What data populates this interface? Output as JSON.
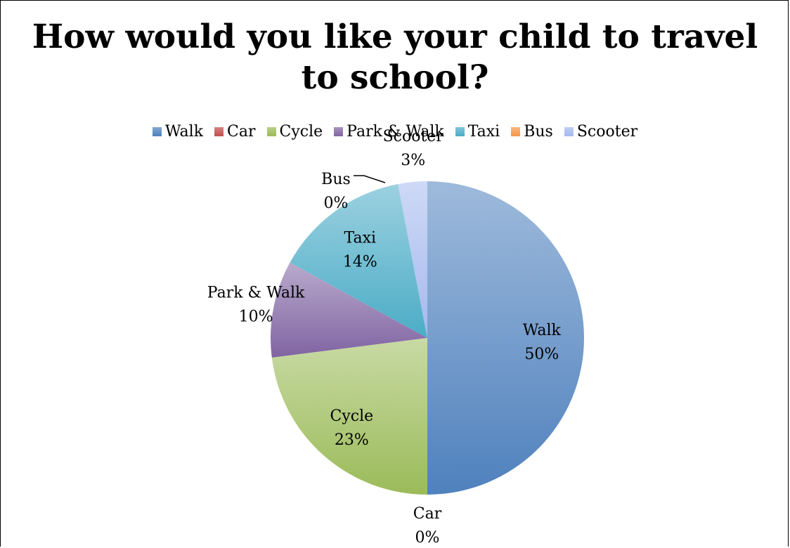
{
  "chart_data": {
    "type": "pie",
    "title": "How would you like your child to travel\nto school?",
    "legend_position": "top",
    "categories": [
      "Walk",
      "Car",
      "Cycle",
      "Park & Walk",
      "Taxi",
      "Bus",
      "Scooter"
    ],
    "values": [
      50,
      0,
      23,
      10,
      14,
      0,
      3
    ],
    "value_labels": [
      "50%",
      "0%",
      "23%",
      "10%",
      "14%",
      "0%",
      "3%"
    ],
    "colors": [
      "#4F81BD",
      "#C0504D",
      "#9BBB59",
      "#8064A2",
      "#4BACC6",
      "#F79646",
      "#A5B9EE"
    ]
  }
}
